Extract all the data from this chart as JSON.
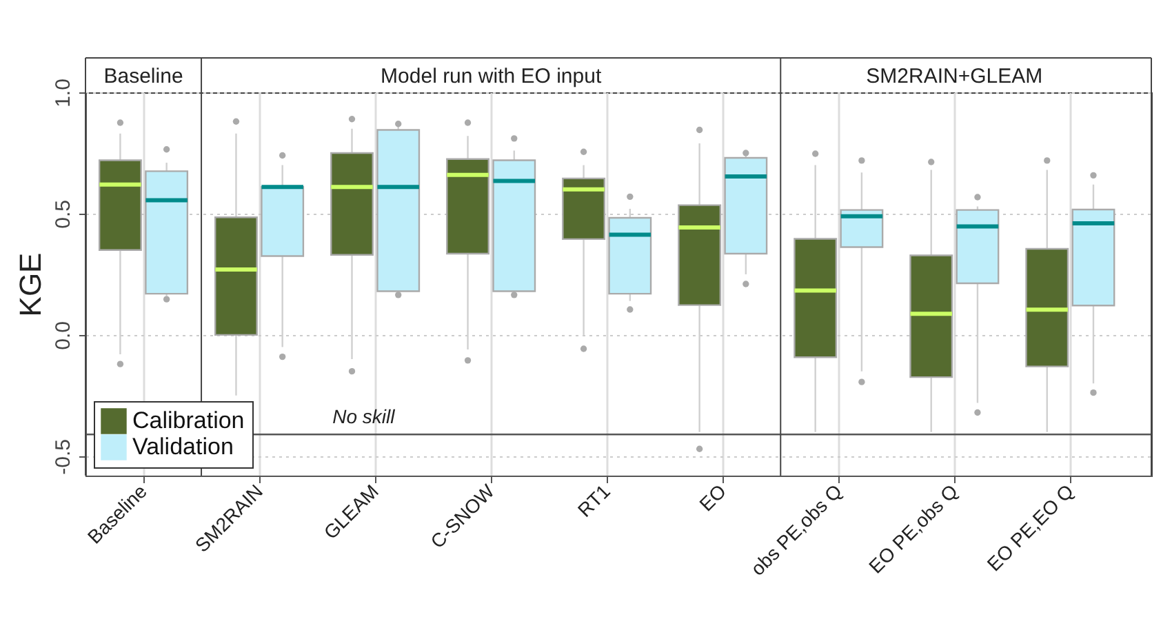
{
  "chart_data": {
    "type": "box",
    "ylabel": "KGE",
    "categories": [
      "Baseline",
      "SM2RAIN",
      "GLEAM",
      "C-SNOW",
      "RT1",
      "EO",
      "obs PE,obs Q",
      "EO PE,obs Q",
      "EO PE,EO Q"
    ],
    "annotations": [
      "Baseline",
      "Model run with EO input",
      "SM2RAIN+GLEAM"
    ],
    "series": [
      {
        "name": "Calibration",
        "color": "#556b2f",
        "boxes": [
          {
            "low": -0.08,
            "q1": 0.35,
            "median": 0.62,
            "q3": 0.72,
            "high": 0.83,
            "outliers": [
              0.875,
              -0.12
            ]
          },
          {
            "low": -0.25,
            "q1": 0.0,
            "median": 0.27,
            "q3": 0.485,
            "high": 0.83,
            "outliers": [
              0.88
            ]
          },
          {
            "low": -0.1,
            "q1": 0.33,
            "median": 0.61,
            "q3": 0.75,
            "high": 0.85,
            "outliers": [
              0.89,
              -0.15
            ]
          },
          {
            "low": -0.06,
            "q1": 0.335,
            "median": 0.66,
            "q3": 0.725,
            "high": 0.82,
            "outliers": [
              0.875,
              -0.105
            ]
          },
          {
            "low": 0.0,
            "q1": 0.395,
            "median": 0.6,
            "q3": 0.645,
            "high": 0.7,
            "outliers": [
              0.755,
              -0.057
            ]
          },
          {
            "low": -0.4,
            "q1": 0.123,
            "median": 0.443,
            "q3": 0.535,
            "high": 0.79,
            "outliers": [
              0.845,
              -0.47
            ]
          },
          {
            "low": -0.4,
            "q1": -0.092,
            "median": 0.183,
            "q3": 0.396,
            "high": 0.7,
            "outliers": [
              0.747
            ]
          },
          {
            "low": -0.4,
            "q1": -0.174,
            "median": 0.087,
            "q3": 0.328,
            "high": 0.68,
            "outliers": [
              0.713
            ]
          },
          {
            "low": -0.4,
            "q1": -0.13,
            "median": 0.104,
            "q3": 0.355,
            "high": 0.68,
            "outliers": [
              0.719
            ]
          }
        ]
      },
      {
        "name": "Validation",
        "color": "#bfeefa",
        "boxes": [
          {
            "low": 0.16,
            "q1": 0.17,
            "median": 0.555,
            "q3": 0.675,
            "high": 0.71,
            "outliers": [
              0.765,
              0.147
            ]
          },
          {
            "low": -0.05,
            "q1": 0.325,
            "median": 0.61,
            "q3": 0.61,
            "high": 0.7,
            "outliers": [
              0.74,
              -0.09
            ]
          },
          {
            "low": 0.17,
            "q1": 0.18,
            "median": 0.61,
            "q3": 0.845,
            "high": 0.86,
            "outliers": [
              0.87,
              0.165
            ]
          },
          {
            "low": 0.17,
            "q1": 0.18,
            "median": 0.635,
            "q3": 0.72,
            "high": 0.76,
            "outliers": [
              0.81,
              0.165
            ]
          },
          {
            "low": 0.14,
            "q1": 0.17,
            "median": 0.413,
            "q3": 0.483,
            "high": 0.52,
            "outliers": [
              0.57,
              0.105
            ]
          },
          {
            "low": 0.25,
            "q1": 0.335,
            "median": 0.653,
            "q3": 0.73,
            "high": 0.74,
            "outliers": [
              0.75,
              0.21
            ]
          },
          {
            "low": -0.15,
            "q1": 0.362,
            "median": 0.489,
            "q3": 0.515,
            "high": 0.67,
            "outliers": [
              0.719,
              -0.194
            ]
          },
          {
            "low": -0.28,
            "q1": 0.213,
            "median": 0.447,
            "q3": 0.515,
            "high": 0.53,
            "outliers": [
              0.568,
              -0.32
            ]
          },
          {
            "low": -0.2,
            "q1": 0.121,
            "median": 0.46,
            "q3": 0.517,
            "high": 0.62,
            "outliers": [
              0.658,
              -0.238
            ]
          }
        ]
      }
    ],
    "ylim": [
      -0.58,
      1.0
    ],
    "yticks": [
      {
        "value": -0.5,
        "label": "-0.5"
      },
      {
        "value": 0,
        "label": "0.0"
      },
      0.5,
      {
        "value": 1,
        "label": "1.0"
      }
    ],
    "ref_lines": [
      {
        "axis": "y",
        "value": -0.41,
        "label": "No skill"
      }
    ],
    "grid": true,
    "legend": "bottom left"
  }
}
